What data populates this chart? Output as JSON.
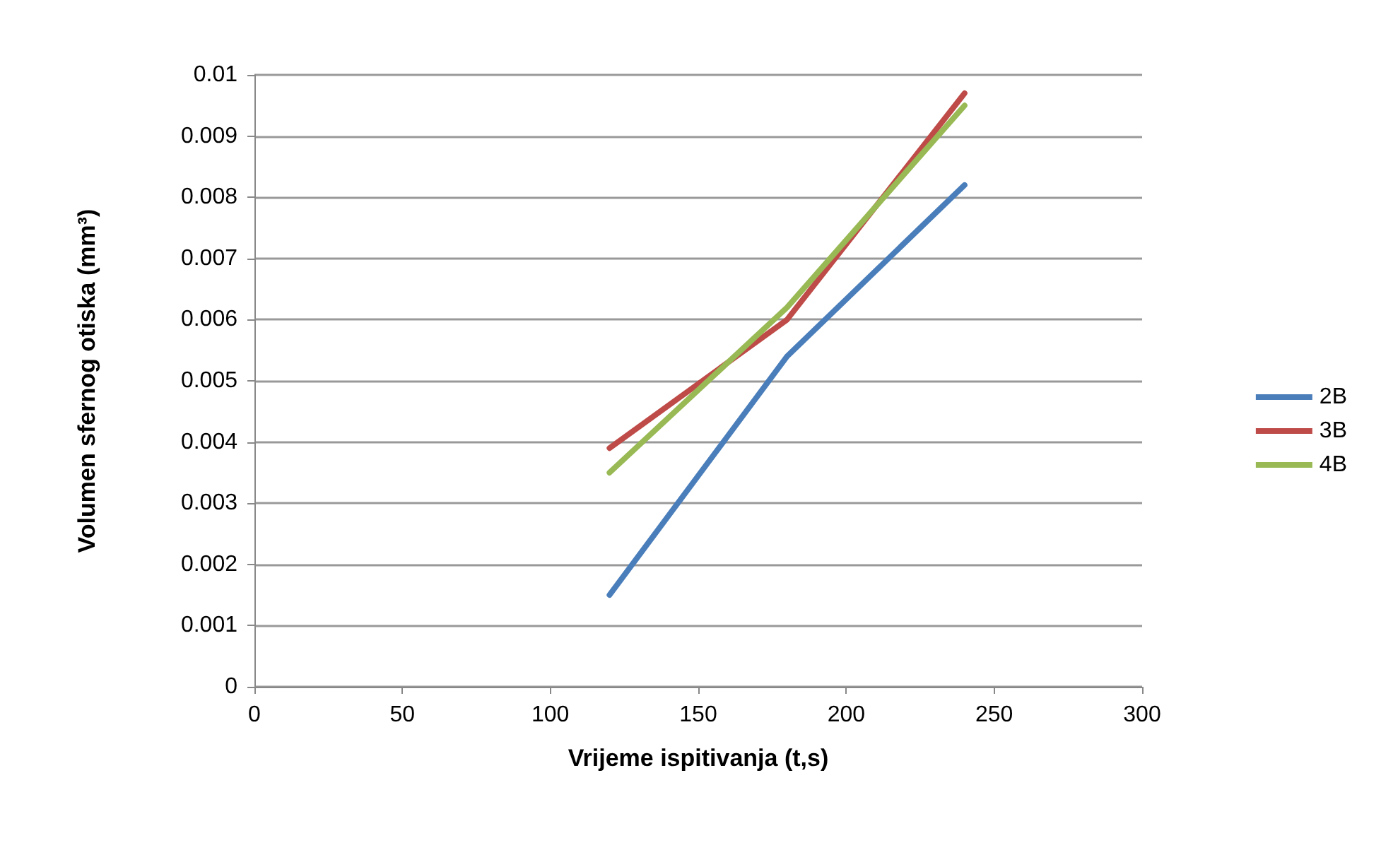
{
  "chart_data": {
    "type": "line",
    "xlabel": "Vrijeme ispitivanja (t,s)",
    "ylabel": "Volumen sfernog otiska (mm³)",
    "x": [
      120,
      180,
      240
    ],
    "series": [
      {
        "name": "2B",
        "color": "#4a7ebb",
        "values": [
          0.0015,
          0.0054,
          0.0082
        ]
      },
      {
        "name": "3B",
        "color": "#be4b48",
        "values": [
          0.0039,
          0.006,
          0.0097
        ]
      },
      {
        "name": "4B",
        "color": "#98b954",
        "values": [
          0.0035,
          0.0062,
          0.0095
        ]
      }
    ],
    "xlim": [
      0,
      300
    ],
    "xticks": [
      0,
      50,
      100,
      150,
      200,
      250,
      300
    ],
    "ylim": [
      0,
      0.01
    ],
    "yticks": [
      0,
      0.001,
      0.002,
      0.003,
      0.004,
      0.005,
      0.006,
      0.007,
      0.008,
      0.009,
      0.01
    ],
    "grid": "y",
    "legend": "right",
    "marker": "none",
    "line_style": "solid"
  }
}
